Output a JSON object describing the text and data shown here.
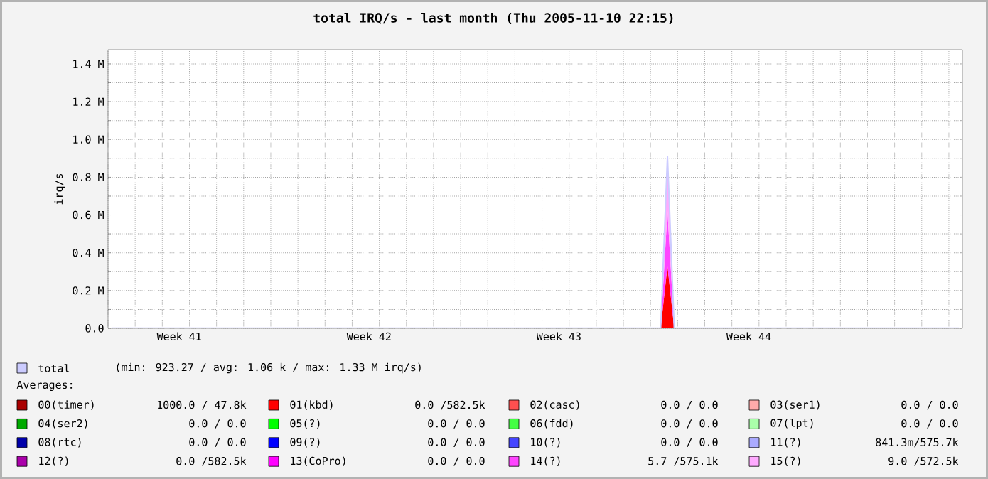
{
  "chart_data": {
    "type": "area",
    "stacked": true,
    "title": "total IRQ/s - last month (Thu 2005-11-10 22:15)",
    "ylabel": "irq/s",
    "categories": [
      null,
      null,
      null,
      null,
      null,
      null,
      null,
      null,
      null,
      null,
      "Week 41",
      null,
      null,
      null,
      null,
      null,
      null,
      null,
      null,
      null,
      null,
      null,
      null,
      null,
      null,
      null,
      null,
      null,
      null,
      null,
      null,
      null,
      null,
      null,
      null,
      null,
      null,
      null,
      "Week 42",
      null,
      null,
      null,
      null,
      null,
      null,
      null,
      null,
      null,
      null,
      null,
      null,
      null,
      null,
      null,
      null,
      null,
      null,
      null,
      null,
      null,
      null,
      null,
      null,
      null,
      null,
      null,
      "Week 43",
      null,
      null,
      null,
      null,
      null,
      null,
      null,
      null,
      null,
      null,
      null,
      null,
      null,
      null,
      null,
      null,
      null,
      null,
      null,
      null,
      null,
      null,
      null,
      null,
      null,
      null,
      null,
      "Week 44",
      null,
      null,
      null,
      null,
      null,
      null,
      null,
      null,
      null,
      null,
      null,
      null,
      null,
      null,
      null,
      null,
      null,
      null,
      null,
      null,
      null,
      null,
      null,
      null,
      null,
      null,
      null,
      null,
      null,
      null,
      null
    ],
    "ylim": [
      0,
      1475000
    ],
    "yticks": [
      {
        "value": 0,
        "label": "0.0"
      },
      {
        "value": 100000,
        "label": null
      },
      {
        "value": 200000,
        "label": "0.2 M"
      },
      {
        "value": 300000,
        "label": null
      },
      {
        "value": 400000,
        "label": "0.4 M"
      },
      {
        "value": 500000,
        "label": null
      },
      {
        "value": 600000,
        "label": "0.6 M"
      },
      {
        "value": 700000,
        "label": null
      },
      {
        "value": 800000,
        "label": "0.8 M"
      },
      {
        "value": 900000,
        "label": null
      },
      {
        "value": 1000000,
        "label": "1.0 M"
      },
      {
        "value": 1100000,
        "label": null
      },
      {
        "value": 1200000,
        "label": "1.2 M"
      },
      {
        "value": 1300000,
        "label": null
      },
      {
        "value": 1400000,
        "label": "1.4 M"
      }
    ],
    "grid": true,
    "legend": "bottom",
    "series": [
      {
        "name": "total",
        "type": "line",
        "color": "#ccccff",
        "values": [
          1000,
          1000,
          1000,
          1000,
          1000,
          1000,
          1000,
          1000,
          1000,
          1000,
          1000,
          1000,
          1000,
          1000,
          1000,
          1000,
          1000,
          1000,
          1000,
          1000,
          1000,
          1000,
          1000,
          1000,
          1000,
          1000,
          1000,
          1000,
          1000,
          1000,
          1000,
          1000,
          1000,
          1000,
          1000,
          1000,
          1000,
          1000,
          1000,
          1000,
          1000,
          1000,
          1000,
          1000,
          1000,
          1000,
          1000,
          1000,
          1000,
          1000,
          1000,
          1000,
          1000,
          1000,
          1000,
          1000,
          1000,
          1000,
          1000,
          1000,
          1000,
          1000,
          1000,
          1000,
          1000,
          1000,
          1000,
          1000,
          1000,
          1000,
          1000,
          1000,
          1000,
          1000,
          1000,
          1000,
          1000,
          1000,
          1000,
          1000,
          1000,
          1000,
          911000,
          1000,
          1000,
          1000,
          1000,
          1000,
          1000,
          1000,
          1000,
          1000,
          1000,
          1000,
          1000,
          1000,
          1000,
          1000,
          1000,
          1000,
          1000,
          1000,
          1000,
          1000,
          1000,
          1000,
          1000,
          1000,
          1000,
          1000,
          1000,
          1000,
          1000,
          1000,
          1000,
          1000,
          1000,
          1000,
          1000,
          1000,
          1000,
          1000,
          1000,
          1000,
          1000,
          1000
        ]
      },
      {
        "name": "00(timer)",
        "color": "#aa0000",
        "values": [
          null,
          null,
          null,
          null,
          null,
          null,
          null,
          null,
          null,
          null,
          null,
          null,
          null,
          null,
          null,
          null,
          null,
          null,
          null,
          null,
          null,
          null,
          null,
          null,
          null,
          null,
          null,
          null,
          null,
          null,
          null,
          null,
          null,
          null,
          null,
          null,
          null,
          null,
          null,
          null,
          null,
          null,
          null,
          null,
          null,
          null,
          null,
          null,
          null,
          null,
          null,
          null,
          null,
          null,
          null,
          null,
          null,
          null,
          null,
          null,
          null,
          null,
          null,
          null,
          null,
          null,
          null,
          null,
          null,
          null,
          null,
          null,
          null,
          null,
          null,
          null,
          null,
          null,
          null,
          null,
          null,
          null,
          null,
          null,
          null,
          null,
          null,
          null,
          null,
          null,
          null,
          null,
          null,
          null,
          null,
          null,
          null,
          null,
          null,
          null,
          null,
          null,
          null,
          null,
          null,
          null,
          null,
          null,
          null,
          null,
          null,
          null,
          null,
          null,
          null,
          null,
          null,
          null,
          null,
          null,
          null,
          null,
          null,
          null,
          null,
          null
        ]
      },
      {
        "name": "01(kbd)",
        "color": "#ff0000",
        "values": [
          null,
          null,
          null,
          null,
          null,
          null,
          null,
          null,
          null,
          null,
          null,
          null,
          null,
          null,
          null,
          null,
          null,
          null,
          null,
          null,
          null,
          null,
          null,
          null,
          null,
          null,
          null,
          null,
          null,
          null,
          null,
          null,
          null,
          null,
          null,
          null,
          null,
          null,
          null,
          null,
          null,
          null,
          null,
          null,
          null,
          null,
          null,
          null,
          null,
          null,
          null,
          null,
          null,
          null,
          null,
          null,
          null,
          null,
          null,
          null,
          null,
          null,
          null,
          null,
          null,
          null,
          null,
          null,
          null,
          null,
          null,
          null,
          null,
          null,
          null,
          null,
          null,
          null,
          null,
          null,
          null,
          0,
          330000,
          0,
          null,
          null,
          null,
          null,
          null,
          null,
          null,
          null,
          null,
          null,
          null,
          null,
          null,
          null,
          null,
          null,
          null,
          null,
          null,
          null,
          null,
          null,
          null,
          null,
          null,
          null,
          null,
          null,
          null,
          null,
          null,
          null,
          null,
          null,
          null,
          null,
          null,
          null,
          null,
          null,
          null,
          null
        ]
      },
      {
        "name": "02(casc)",
        "color": "#ff5050",
        "values": [
          null,
          null,
          null,
          null,
          null,
          null,
          null,
          null,
          null,
          null,
          null,
          null,
          null,
          null,
          null,
          null,
          null,
          null,
          null,
          null,
          null,
          null,
          null,
          null,
          null,
          null,
          null,
          null,
          null,
          null,
          null,
          null,
          null,
          null,
          null,
          null,
          null,
          null,
          null,
          null,
          null,
          null,
          null,
          null,
          null,
          null,
          null,
          null,
          null,
          null,
          null,
          null,
          null,
          null,
          null,
          null,
          null,
          null,
          null,
          null,
          null,
          null,
          null,
          null,
          null,
          null,
          null,
          null,
          null,
          null,
          null,
          null,
          null,
          null,
          null,
          null,
          null,
          null,
          null,
          null,
          null,
          null,
          null,
          null,
          null,
          null,
          null,
          null,
          null,
          null,
          null,
          null,
          null,
          null,
          null,
          null,
          null,
          null,
          null,
          null,
          null,
          null,
          null,
          null,
          null,
          null,
          null,
          null,
          null,
          null,
          null,
          null,
          null,
          null,
          null,
          null,
          null,
          null,
          null,
          null,
          null,
          null,
          null,
          null,
          null,
          null
        ]
      },
      {
        "name": "03(ser1)",
        "color": "#ffaaaa",
        "values": [
          null,
          null,
          null,
          null,
          null,
          null,
          null,
          null,
          null,
          null,
          null,
          null,
          null,
          null,
          null,
          null,
          null,
          null,
          null,
          null,
          null,
          null,
          null,
          null,
          null,
          null,
          null,
          null,
          null,
          null,
          null,
          null,
          null,
          null,
          null,
          null,
          null,
          null,
          null,
          null,
          null,
          null,
          null,
          null,
          null,
          null,
          null,
          null,
          null,
          null,
          null,
          null,
          null,
          null,
          null,
          null,
          null,
          null,
          null,
          null,
          null,
          null,
          null,
          null,
          null,
          null,
          null,
          null,
          null,
          null,
          null,
          null,
          null,
          null,
          null,
          null,
          null,
          null,
          null,
          null,
          null,
          null,
          null,
          null,
          null,
          null,
          null,
          null,
          null,
          null,
          null,
          null,
          null,
          null,
          null,
          null,
          null,
          null,
          null,
          null,
          null,
          null,
          null,
          null,
          null,
          null,
          null,
          null,
          null,
          null,
          null,
          null,
          null,
          null,
          null,
          null,
          null,
          null,
          null,
          null,
          null,
          null,
          null,
          null,
          null,
          null
        ]
      },
      {
        "name": "04(ser2)",
        "color": "#00aa00",
        "values": [
          null,
          null,
          null,
          null,
          null,
          null,
          null,
          null,
          null,
          null,
          null,
          null,
          null,
          null,
          null,
          null,
          null,
          null,
          null,
          null,
          null,
          null,
          null,
          null,
          null,
          null,
          null,
          null,
          null,
          null,
          null,
          null,
          null,
          null,
          null,
          null,
          null,
          null,
          null,
          null,
          null,
          null,
          null,
          null,
          null,
          null,
          null,
          null,
          null,
          null,
          null,
          null,
          null,
          null,
          null,
          null,
          null,
          null,
          null,
          null,
          null,
          null,
          null,
          null,
          null,
          null,
          null,
          null,
          null,
          null,
          null,
          null,
          null,
          null,
          null,
          null,
          null,
          null,
          null,
          null,
          null,
          null,
          null,
          null,
          null,
          null,
          null,
          null,
          null,
          null,
          null,
          null,
          null,
          null,
          null,
          null,
          null,
          null,
          null,
          null,
          null,
          null,
          null,
          null,
          null,
          null,
          null,
          null,
          null,
          null,
          null,
          null,
          null,
          null,
          null,
          null,
          null,
          null,
          null,
          null,
          null,
          null,
          null,
          null,
          null,
          null
        ]
      },
      {
        "name": "05(?)",
        "color": "#00ff00",
        "values": [
          null,
          null,
          null,
          null,
          null,
          null,
          null,
          null,
          null,
          null,
          null,
          null,
          null,
          null,
          null,
          null,
          null,
          null,
          null,
          null,
          null,
          null,
          null,
          null,
          null,
          null,
          null,
          null,
          null,
          null,
          null,
          null,
          null,
          null,
          null,
          null,
          null,
          null,
          null,
          null,
          null,
          null,
          null,
          null,
          null,
          null,
          null,
          null,
          null,
          null,
          null,
          null,
          null,
          null,
          null,
          null,
          null,
          null,
          null,
          null,
          null,
          null,
          null,
          null,
          null,
          null,
          null,
          null,
          null,
          null,
          null,
          null,
          null,
          null,
          null,
          null,
          null,
          null,
          null,
          null,
          null,
          null,
          null,
          null,
          null,
          null,
          null,
          null,
          null,
          null,
          null,
          null,
          null,
          null,
          null,
          null,
          null,
          null,
          null,
          null,
          null,
          null,
          null,
          null,
          null,
          null,
          null,
          null,
          null,
          null,
          null,
          null,
          null,
          null,
          null,
          null,
          null,
          null,
          null,
          null,
          null,
          null,
          null,
          null,
          null,
          null
        ]
      },
      {
        "name": "06(fdd)",
        "color": "#44ff44",
        "values": [
          null,
          null,
          null,
          null,
          null,
          null,
          null,
          null,
          null,
          null,
          null,
          null,
          null,
          null,
          null,
          null,
          null,
          null,
          null,
          null,
          null,
          null,
          null,
          null,
          null,
          null,
          null,
          null,
          null,
          null,
          null,
          null,
          null,
          null,
          null,
          null,
          null,
          null,
          null,
          null,
          null,
          null,
          null,
          null,
          null,
          null,
          null,
          null,
          null,
          null,
          null,
          null,
          null,
          null,
          null,
          null,
          null,
          null,
          null,
          null,
          null,
          null,
          null,
          null,
          null,
          null,
          null,
          null,
          null,
          null,
          null,
          null,
          null,
          null,
          null,
          null,
          null,
          null,
          null,
          null,
          null,
          null,
          null,
          null,
          null,
          null,
          null,
          null,
          null,
          null,
          null,
          null,
          null,
          null,
          null,
          null,
          null,
          null,
          null,
          null,
          null,
          null,
          null,
          null,
          null,
          null,
          null,
          null,
          null,
          null,
          null,
          null,
          null,
          null,
          null,
          null,
          null,
          null,
          null,
          null,
          null,
          null,
          null,
          null,
          null,
          null
        ]
      },
      {
        "name": "07(lpt)",
        "color": "#aaffaa",
        "values": [
          null,
          null,
          null,
          null,
          null,
          null,
          null,
          null,
          null,
          null,
          null,
          null,
          null,
          null,
          null,
          null,
          null,
          null,
          null,
          null,
          null,
          null,
          null,
          null,
          null,
          null,
          null,
          null,
          null,
          null,
          null,
          null,
          null,
          null,
          null,
          null,
          null,
          null,
          null,
          null,
          null,
          null,
          null,
          null,
          null,
          null,
          null,
          null,
          null,
          null,
          null,
          null,
          null,
          null,
          null,
          null,
          null,
          null,
          null,
          null,
          null,
          null,
          null,
          null,
          null,
          null,
          null,
          null,
          null,
          null,
          null,
          null,
          null,
          null,
          null,
          null,
          null,
          null,
          null,
          null,
          null,
          null,
          null,
          null,
          null,
          null,
          null,
          null,
          null,
          null,
          null,
          null,
          null,
          null,
          null,
          null,
          null,
          null,
          null,
          null,
          null,
          null,
          null,
          null,
          null,
          null,
          null,
          null,
          null,
          null,
          null,
          null,
          null,
          null,
          null,
          null,
          null,
          null,
          null,
          null,
          null,
          null,
          null,
          null,
          null,
          null
        ]
      },
      {
        "name": "08(rtc)",
        "color": "#0000aa",
        "values": [
          null,
          null,
          null,
          null,
          null,
          null,
          null,
          null,
          null,
          null,
          null,
          null,
          null,
          null,
          null,
          null,
          null,
          null,
          null,
          null,
          null,
          null,
          null,
          null,
          null,
          null,
          null,
          null,
          null,
          null,
          null,
          null,
          null,
          null,
          null,
          null,
          null,
          null,
          null,
          null,
          null,
          null,
          null,
          null,
          null,
          null,
          null,
          null,
          null,
          null,
          null,
          null,
          null,
          null,
          null,
          null,
          null,
          null,
          null,
          null,
          null,
          null,
          null,
          null,
          null,
          null,
          null,
          null,
          null,
          null,
          null,
          null,
          null,
          null,
          null,
          null,
          null,
          null,
          null,
          null,
          null,
          null,
          null,
          null,
          null,
          null,
          null,
          null,
          null,
          null,
          null,
          null,
          null,
          null,
          null,
          null,
          null,
          null,
          null,
          null,
          null,
          null,
          null,
          null,
          null,
          null,
          null,
          null,
          null,
          null,
          null,
          null,
          null,
          null,
          null,
          null,
          null,
          null,
          null,
          null,
          null,
          null,
          null,
          null,
          null,
          null
        ]
      },
      {
        "name": "09(?)",
        "color": "#0000ff",
        "values": [
          null,
          null,
          null,
          null,
          null,
          null,
          null,
          null,
          null,
          null,
          null,
          null,
          null,
          null,
          null,
          null,
          null,
          null,
          null,
          null,
          null,
          null,
          null,
          null,
          null,
          null,
          null,
          null,
          null,
          null,
          null,
          null,
          null,
          null,
          null,
          null,
          null,
          null,
          null,
          null,
          null,
          null,
          null,
          null,
          null,
          null,
          null,
          null,
          null,
          null,
          null,
          null,
          null,
          null,
          null,
          null,
          null,
          null,
          null,
          null,
          null,
          null,
          null,
          null,
          null,
          null,
          null,
          null,
          null,
          null,
          null,
          null,
          null,
          null,
          null,
          null,
          null,
          null,
          null,
          null,
          null,
          null,
          null,
          null,
          null,
          null,
          null,
          null,
          null,
          null,
          null,
          null,
          null,
          null,
          null,
          null,
          null,
          null,
          null,
          null,
          null,
          null,
          null,
          null,
          null,
          null,
          null,
          null,
          null,
          null,
          null,
          null,
          null,
          null,
          null,
          null,
          null,
          null,
          null,
          null,
          null,
          null,
          null,
          null,
          null,
          null
        ]
      },
      {
        "name": "10(?)",
        "color": "#4444ff",
        "values": [
          null,
          null,
          null,
          null,
          null,
          null,
          null,
          null,
          null,
          null,
          null,
          null,
          null,
          null,
          null,
          null,
          null,
          null,
          null,
          null,
          null,
          null,
          null,
          null,
          null,
          null,
          null,
          null,
          null,
          null,
          null,
          null,
          null,
          null,
          null,
          null,
          null,
          null,
          null,
          null,
          null,
          null,
          null,
          null,
          null,
          null,
          null,
          null,
          null,
          null,
          null,
          null,
          null,
          null,
          null,
          null,
          null,
          null,
          null,
          null,
          null,
          null,
          null,
          null,
          null,
          null,
          null,
          null,
          null,
          null,
          null,
          null,
          null,
          null,
          null,
          null,
          null,
          null,
          null,
          null,
          null,
          null,
          null,
          null,
          null,
          null,
          null,
          null,
          null,
          null,
          null,
          null,
          null,
          null,
          null,
          null,
          null,
          null,
          null,
          null,
          null,
          null,
          null,
          null,
          null,
          null,
          null,
          null,
          null,
          null,
          null,
          null,
          null,
          null,
          null,
          null,
          null,
          null,
          null,
          null,
          null,
          null,
          null,
          null,
          null,
          null
        ]
      },
      {
        "name": "11(?)",
        "color": "#aaaaff",
        "values": [
          null,
          null,
          null,
          null,
          null,
          null,
          null,
          null,
          null,
          null,
          null,
          null,
          null,
          null,
          null,
          null,
          null,
          null,
          null,
          null,
          null,
          null,
          null,
          null,
          null,
          null,
          null,
          null,
          null,
          null,
          null,
          null,
          null,
          null,
          null,
          null,
          null,
          null,
          null,
          null,
          null,
          null,
          null,
          null,
          null,
          null,
          null,
          null,
          null,
          null,
          null,
          null,
          null,
          null,
          null,
          null,
          null,
          null,
          null,
          null,
          null,
          null,
          null,
          null,
          null,
          null,
          null,
          null,
          null,
          null,
          null,
          null,
          null,
          null,
          null,
          null,
          null,
          null,
          null,
          null,
          null,
          null,
          null,
          null,
          null,
          null,
          null,
          null,
          null,
          null,
          null,
          null,
          null,
          null,
          null,
          null,
          null,
          null,
          null,
          null,
          null,
          null,
          null,
          null,
          null,
          null,
          null,
          null,
          null,
          null,
          null,
          null,
          null,
          null,
          null,
          null,
          null,
          null,
          null,
          null,
          null,
          null,
          null,
          null,
          null,
          null
        ]
      },
      {
        "name": "12(?)",
        "color": "#aa00aa",
        "values": [
          null,
          null,
          null,
          null,
          null,
          null,
          null,
          null,
          null,
          null,
          null,
          null,
          null,
          null,
          null,
          null,
          null,
          null,
          null,
          null,
          null,
          null,
          null,
          null,
          null,
          null,
          null,
          null,
          null,
          null,
          null,
          null,
          null,
          null,
          null,
          null,
          null,
          null,
          null,
          null,
          null,
          null,
          null,
          null,
          null,
          null,
          null,
          null,
          null,
          null,
          null,
          null,
          null,
          null,
          null,
          null,
          null,
          null,
          null,
          null,
          null,
          null,
          null,
          null,
          null,
          null,
          null,
          null,
          null,
          null,
          null,
          null,
          null,
          null,
          null,
          null,
          null,
          null,
          null,
          null,
          null,
          null,
          null,
          null,
          null,
          null,
          null,
          null,
          null,
          null,
          null,
          null,
          null,
          null,
          null,
          null,
          null,
          null,
          null,
          null,
          null,
          null,
          null,
          null,
          null,
          null,
          null,
          null,
          null,
          null,
          null,
          null,
          null,
          null,
          null,
          null,
          null,
          null,
          null,
          null,
          null,
          null,
          null,
          null,
          null,
          null
        ]
      },
      {
        "name": "13(CoPro)",
        "color": "#ff00ff",
        "values": [
          null,
          null,
          null,
          null,
          null,
          null,
          null,
          null,
          null,
          null,
          null,
          null,
          null,
          null,
          null,
          null,
          null,
          null,
          null,
          null,
          null,
          null,
          null,
          null,
          null,
          null,
          null,
          null,
          null,
          null,
          null,
          null,
          null,
          null,
          null,
          null,
          null,
          null,
          null,
          null,
          null,
          null,
          null,
          null,
          null,
          null,
          null,
          null,
          null,
          null,
          null,
          null,
          null,
          null,
          null,
          null,
          null,
          null,
          null,
          null,
          null,
          null,
          null,
          null,
          null,
          null,
          null,
          null,
          null,
          null,
          null,
          null,
          null,
          null,
          null,
          null,
          null,
          null,
          null,
          null,
          null,
          null,
          null,
          null,
          null,
          null,
          null,
          null,
          null,
          null,
          null,
          null,
          null,
          null,
          null,
          null,
          null,
          null,
          null,
          null,
          null,
          null,
          null,
          null,
          null,
          null,
          null,
          null,
          null,
          null,
          null,
          null,
          null,
          null,
          null,
          null,
          null,
          null,
          null,
          null,
          null,
          null,
          null,
          null,
          null,
          null
        ]
      },
      {
        "name": "14(?)",
        "color": "#ff44ff",
        "values": [
          null,
          null,
          null,
          null,
          null,
          null,
          null,
          null,
          null,
          null,
          null,
          null,
          null,
          null,
          null,
          null,
          null,
          null,
          null,
          null,
          null,
          null,
          null,
          null,
          null,
          null,
          null,
          null,
          null,
          null,
          null,
          null,
          null,
          null,
          null,
          null,
          null,
          null,
          null,
          null,
          null,
          null,
          null,
          null,
          null,
          null,
          null,
          null,
          null,
          null,
          null,
          null,
          null,
          null,
          null,
          null,
          null,
          null,
          null,
          null,
          null,
          null,
          null,
          null,
          null,
          null,
          null,
          null,
          null,
          null,
          null,
          null,
          null,
          null,
          null,
          null,
          null,
          null,
          null,
          null,
          null,
          0,
          290000,
          0,
          null,
          null,
          null,
          null,
          null,
          null,
          null,
          null,
          null,
          null,
          null,
          null,
          null,
          null,
          null,
          null,
          null,
          null,
          null,
          null,
          null,
          null,
          null,
          null,
          null,
          null,
          null,
          null,
          null,
          null,
          null,
          null,
          null,
          null,
          null,
          null,
          null,
          null,
          null,
          null,
          null,
          null
        ]
      },
      {
        "name": "15(?)",
        "color": "#ffaaff",
        "values": [
          null,
          null,
          null,
          null,
          null,
          null,
          null,
          null,
          null,
          null,
          null,
          null,
          null,
          null,
          null,
          null,
          null,
          null,
          null,
          null,
          null,
          null,
          null,
          null,
          null,
          null,
          null,
          null,
          null,
          null,
          null,
          null,
          null,
          null,
          null,
          null,
          null,
          null,
          null,
          null,
          null,
          null,
          null,
          null,
          null,
          null,
          null,
          null,
          null,
          null,
          null,
          null,
          null,
          null,
          null,
          null,
          null,
          null,
          null,
          null,
          null,
          null,
          null,
          null,
          null,
          null,
          null,
          null,
          null,
          null,
          null,
          null,
          null,
          null,
          null,
          null,
          null,
          null,
          null,
          null,
          null,
          0,
          290000,
          0,
          null,
          null,
          null,
          null,
          null,
          null,
          null,
          null,
          null,
          null,
          null,
          null,
          null,
          null,
          null,
          null,
          null,
          null,
          null,
          null,
          null,
          null,
          null,
          null,
          null,
          null,
          null,
          null,
          null,
          null,
          null,
          null,
          null,
          null,
          null,
          null,
          null,
          null,
          null,
          null,
          null,
          null
        ]
      }
    ],
    "annotations": [
      "(min: 923.27 / avg: 1.06 k / max: 1.33 M irq/s)",
      "Averages:",
      "1000.0 / 47.8k",
      "0.0 /582.5k",
      "0.0 / 0.0",
      "0.0 / 0.0",
      "0.0 / 0.0",
      "0.0 / 0.0",
      "0.0 / 0.0",
      "0.0 / 0.0",
      "0.0 / 0.0",
      "0.0 / 0.0",
      "0.0 / 0.0",
      "841.3m/575.7k",
      "0.0 /582.5k",
      "0.0 / 0.0",
      "5.7 /575.1k",
      "9.0 /572.5k"
    ]
  }
}
